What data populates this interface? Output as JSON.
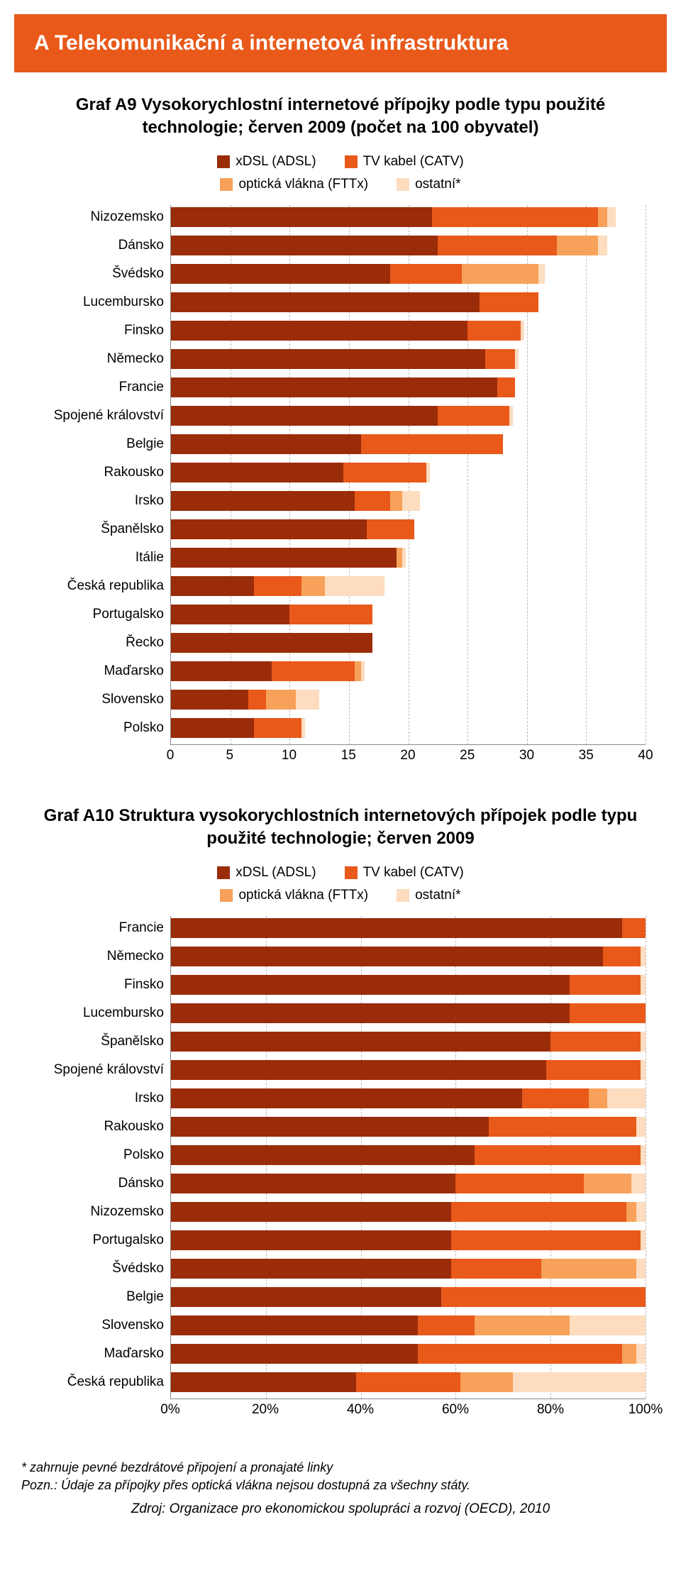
{
  "banner_title": "A  Telekomunikační a internetová infrastruktura",
  "colors": {
    "xdsl": "#9a2c0a",
    "catv": "#e8591a",
    "fttx": "#f7a15a",
    "other": "#fddcbf",
    "grid": "#bbbbbb",
    "banner": "#e8591a"
  },
  "legend_labels": {
    "xdsl": "xDSL (ADSL)",
    "catv": "TV kabel (CATV)",
    "fttx": "optická vlákna (FTTx)",
    "other": "ostatní*"
  },
  "chartA9": {
    "title": "Graf A9 Vysokorychlostní internetové přípojky podle typu použité technologie; červen 2009 (počet na 100 obyvatel)",
    "type": "stacked_bar_horizontal",
    "x_min": 0,
    "x_max": 40,
    "x_step": 5,
    "x_ticks": [
      "0",
      "5",
      "10",
      "15",
      "20",
      "25",
      "30",
      "35",
      "40"
    ],
    "rows": [
      {
        "label": "Nizozemsko",
        "xdsl": 22.0,
        "catv": 14.0,
        "fttx": 0.8,
        "other": 0.7
      },
      {
        "label": "Dánsko",
        "xdsl": 22.5,
        "catv": 10.0,
        "fttx": 3.5,
        "other": 0.8
      },
      {
        "label": "Švédsko",
        "xdsl": 18.5,
        "catv": 6.0,
        "fttx": 6.5,
        "other": 0.5
      },
      {
        "label": "Lucembursko",
        "xdsl": 26.0,
        "catv": 5.0,
        "fttx": 0.0,
        "other": 0.0
      },
      {
        "label": "Finsko",
        "xdsl": 25.0,
        "catv": 4.5,
        "fttx": 0.0,
        "other": 0.3
      },
      {
        "label": "Německo",
        "xdsl": 26.5,
        "catv": 2.5,
        "fttx": 0.0,
        "other": 0.3
      },
      {
        "label": "Francie",
        "xdsl": 27.5,
        "catv": 1.5,
        "fttx": 0.0,
        "other": 0.0
      },
      {
        "label": "Spojené království",
        "xdsl": 22.5,
        "catv": 6.0,
        "fttx": 0.0,
        "other": 0.3
      },
      {
        "label": "Belgie",
        "xdsl": 16.0,
        "catv": 12.0,
        "fttx": 0.0,
        "other": 0.0
      },
      {
        "label": "Rakousko",
        "xdsl": 14.5,
        "catv": 7.0,
        "fttx": 0.0,
        "other": 0.3
      },
      {
        "label": "Irsko",
        "xdsl": 15.5,
        "catv": 3.0,
        "fttx": 1.0,
        "other": 1.5
      },
      {
        "label": "Španělsko",
        "xdsl": 16.5,
        "catv": 4.0,
        "fttx": 0.0,
        "other": 0.0
      },
      {
        "label": "Itálie",
        "xdsl": 19.0,
        "catv": 0.0,
        "fttx": 0.5,
        "other": 0.3
      },
      {
        "label": "Česká republika",
        "xdsl": 7.0,
        "catv": 4.0,
        "fttx": 2.0,
        "other": 5.0
      },
      {
        "label": "Portugalsko",
        "xdsl": 10.0,
        "catv": 7.0,
        "fttx": 0.0,
        "other": 0.0
      },
      {
        "label": "Řecko",
        "xdsl": 17.0,
        "catv": 0.0,
        "fttx": 0.0,
        "other": 0.0
      },
      {
        "label": "Maďarsko",
        "xdsl": 8.5,
        "catv": 7.0,
        "fttx": 0.5,
        "other": 0.3
      },
      {
        "label": "Slovensko",
        "xdsl": 6.5,
        "catv": 1.5,
        "fttx": 2.5,
        "other": 2.0
      },
      {
        "label": "Polsko",
        "xdsl": 7.0,
        "catv": 4.0,
        "fttx": 0.0,
        "other": 0.3
      }
    ]
  },
  "chartA10": {
    "title": "Graf A10 Struktura vysokorychlostních internetových přípojek podle typu použité technologie; červen 2009",
    "type": "stacked_bar_horizontal_100pct",
    "x_min": 0,
    "x_max": 100,
    "x_step": 20,
    "x_ticks": [
      "0%",
      "20%",
      "40%",
      "60%",
      "80%",
      "100%"
    ],
    "rows": [
      {
        "label": "Francie",
        "xdsl": 95,
        "catv": 5,
        "fttx": 0,
        "other": 0
      },
      {
        "label": "Německo",
        "xdsl": 91,
        "catv": 8,
        "fttx": 0,
        "other": 1
      },
      {
        "label": "Finsko",
        "xdsl": 84,
        "catv": 15,
        "fttx": 0,
        "other": 1
      },
      {
        "label": "Lucembursko",
        "xdsl": 84,
        "catv": 16,
        "fttx": 0,
        "other": 0
      },
      {
        "label": "Španělsko",
        "xdsl": 80,
        "catv": 19,
        "fttx": 0,
        "other": 1
      },
      {
        "label": "Spojené království",
        "xdsl": 79,
        "catv": 20,
        "fttx": 0,
        "other": 1
      },
      {
        "label": "Irsko",
        "xdsl": 74,
        "catv": 14,
        "fttx": 4,
        "other": 8
      },
      {
        "label": "Rakousko",
        "xdsl": 67,
        "catv": 31,
        "fttx": 0,
        "other": 2
      },
      {
        "label": "Polsko",
        "xdsl": 64,
        "catv": 35,
        "fttx": 0,
        "other": 1
      },
      {
        "label": "Dánsko",
        "xdsl": 60,
        "catv": 27,
        "fttx": 10,
        "other": 3
      },
      {
        "label": "Nizozemsko",
        "xdsl": 59,
        "catv": 37,
        "fttx": 2,
        "other": 2
      },
      {
        "label": "Portugalsko",
        "xdsl": 59,
        "catv": 40,
        "fttx": 0,
        "other": 1
      },
      {
        "label": "Švédsko",
        "xdsl": 59,
        "catv": 19,
        "fttx": 20,
        "other": 2
      },
      {
        "label": "Belgie",
        "xdsl": 57,
        "catv": 43,
        "fttx": 0,
        "other": 0
      },
      {
        "label": "Slovensko",
        "xdsl": 52,
        "catv": 12,
        "fttx": 20,
        "other": 16
      },
      {
        "label": "Maďarsko",
        "xdsl": 52,
        "catv": 43,
        "fttx": 3,
        "other": 2
      },
      {
        "label": "Česká republika",
        "xdsl": 39,
        "catv": 22,
        "fttx": 11,
        "other": 28
      }
    ]
  },
  "footnote1": "* zahrnuje pevné bezdrátové připojení a pronajaté linky",
  "footnote2": "Pozn.: Údaje za přípojky přes optická vlákna nejsou dostupná za všechny státy.",
  "source": "Zdroj: Organizace pro ekonomickou spolupráci a rozvoj (OECD), 2010"
}
